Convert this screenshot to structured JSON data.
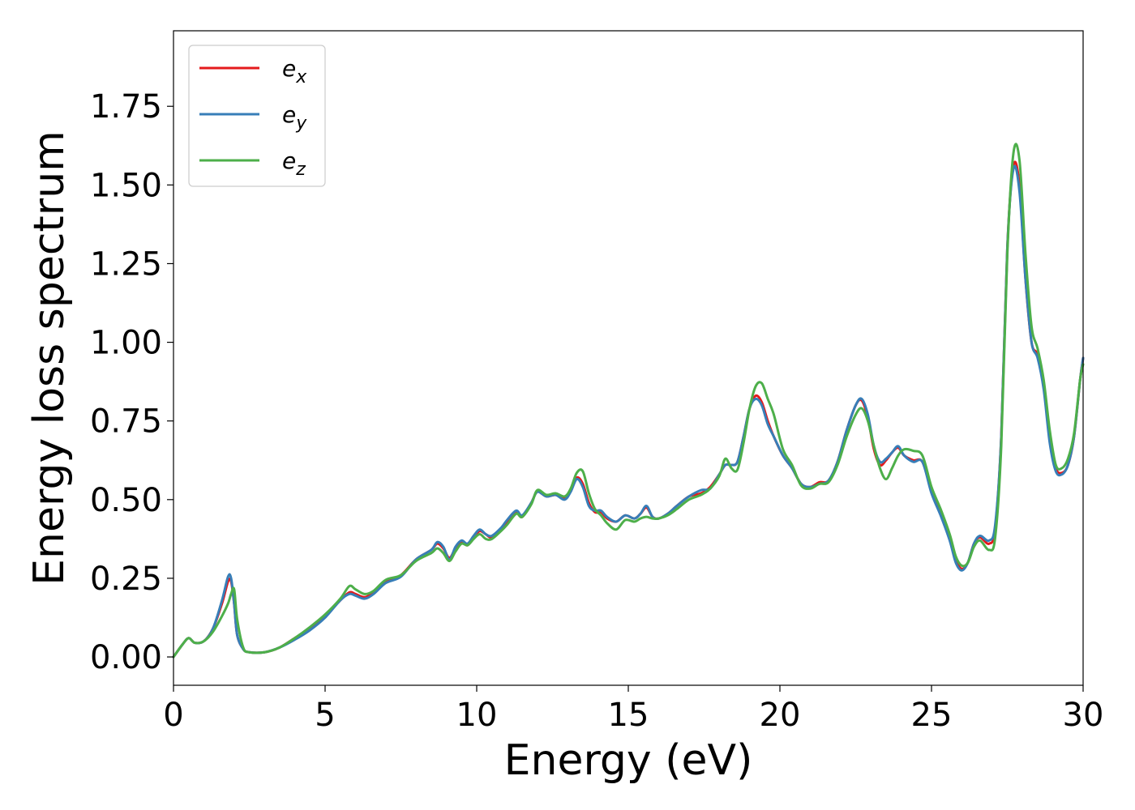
{
  "chart_data": {
    "type": "line",
    "title": "",
    "xlabel": "Energy (eV)",
    "ylabel": "Energy loss spectrum",
    "xlim": [
      0,
      30
    ],
    "ylim": [
      -0.09,
      1.99
    ],
    "xticks": [
      0,
      5,
      10,
      15,
      20,
      25,
      30
    ],
    "xtick_labels": [
      "0",
      "5",
      "10",
      "15",
      "20",
      "25",
      "30"
    ],
    "yticks": [
      0,
      0.25,
      0.5,
      0.75,
      1.0,
      1.25,
      1.5,
      1.75
    ],
    "ytick_labels": [
      "0.00",
      "0.25",
      "0.50",
      "0.75",
      "1.00",
      "1.25",
      "1.50",
      "1.75"
    ],
    "grid": false,
    "legend_position": "top-left",
    "series": [
      {
        "name": "e_x",
        "label_base": "e",
        "label_sub": "x",
        "color": "#e41a1c",
        "x": [
          0,
          0.3,
          0.5,
          0.7,
          1.0,
          1.3,
          1.6,
          1.8,
          1.9,
          2.0,
          2.1,
          2.3,
          2.5,
          3.0,
          3.5,
          4.0,
          4.5,
          5.0,
          5.5,
          5.8,
          6.0,
          6.3,
          6.6,
          7.0,
          7.5,
          8.0,
          8.5,
          8.7,
          8.9,
          9.1,
          9.3,
          9.5,
          9.7,
          9.9,
          10.1,
          10.3,
          10.5,
          10.8,
          11.0,
          11.3,
          11.5,
          11.8,
          12.0,
          12.3,
          12.6,
          12.9,
          13.1,
          13.3,
          13.5,
          13.7,
          13.9,
          14.1,
          14.3,
          14.6,
          14.9,
          15.2,
          15.4,
          15.6,
          15.8,
          16.0,
          16.3,
          16.6,
          17.0,
          17.4,
          17.7,
          18.0,
          18.2,
          18.4,
          18.6,
          18.8,
          19.0,
          19.2,
          19.4,
          19.6,
          19.8,
          20.1,
          20.4,
          20.7,
          21.0,
          21.3,
          21.6,
          21.9,
          22.2,
          22.5,
          22.7,
          22.9,
          23.1,
          23.3,
          23.5,
          23.7,
          23.9,
          24.1,
          24.4,
          24.7,
          25.0,
          25.3,
          25.6,
          25.8,
          26.0,
          26.2,
          26.4,
          26.6,
          26.9,
          27.1,
          27.3,
          27.5,
          27.7,
          27.9,
          28.1,
          28.3,
          28.5,
          28.7,
          28.9,
          29.1,
          29.3,
          29.5,
          29.7,
          29.9,
          30.0
        ],
        "y": [
          0,
          0.04,
          0.06,
          0.045,
          0.05,
          0.09,
          0.17,
          0.24,
          0.24,
          0.17,
          0.07,
          0.025,
          0.015,
          0.015,
          0.03,
          0.06,
          0.09,
          0.13,
          0.18,
          0.205,
          0.2,
          0.19,
          0.205,
          0.24,
          0.26,
          0.31,
          0.34,
          0.36,
          0.345,
          0.315,
          0.345,
          0.365,
          0.355,
          0.38,
          0.4,
          0.39,
          0.38,
          0.405,
          0.43,
          0.46,
          0.445,
          0.49,
          0.525,
          0.51,
          0.515,
          0.505,
          0.53,
          0.57,
          0.55,
          0.49,
          0.46,
          0.46,
          0.44,
          0.43,
          0.45,
          0.44,
          0.455,
          0.475,
          0.445,
          0.44,
          0.455,
          0.48,
          0.51,
          0.52,
          0.54,
          0.58,
          0.61,
          0.61,
          0.62,
          0.7,
          0.79,
          0.83,
          0.81,
          0.75,
          0.7,
          0.64,
          0.6,
          0.55,
          0.54,
          0.555,
          0.56,
          0.62,
          0.72,
          0.8,
          0.815,
          0.76,
          0.66,
          0.61,
          0.625,
          0.65,
          0.665,
          0.64,
          0.625,
          0.62,
          0.53,
          0.46,
          0.38,
          0.31,
          0.28,
          0.3,
          0.36,
          0.38,
          0.36,
          0.41,
          0.7,
          1.3,
          1.56,
          1.5,
          1.2,
          1.0,
          0.96,
          0.86,
          0.7,
          0.6,
          0.585,
          0.61,
          0.7,
          0.88,
          0.95
        ]
      },
      {
        "name": "e_y",
        "label_base": "e",
        "label_sub": "y",
        "color": "#377eb8",
        "x": [
          0,
          0.3,
          0.5,
          0.7,
          1.0,
          1.3,
          1.6,
          1.8,
          1.9,
          2.0,
          2.1,
          2.3,
          2.5,
          3.0,
          3.5,
          4.0,
          4.5,
          5.0,
          5.5,
          5.8,
          6.0,
          6.3,
          6.6,
          7.0,
          7.5,
          8.0,
          8.5,
          8.7,
          8.9,
          9.1,
          9.3,
          9.5,
          9.7,
          9.9,
          10.1,
          10.3,
          10.5,
          10.8,
          11.0,
          11.3,
          11.5,
          11.8,
          12.0,
          12.3,
          12.6,
          12.9,
          13.1,
          13.3,
          13.5,
          13.7,
          13.9,
          14.1,
          14.3,
          14.6,
          14.9,
          15.2,
          15.4,
          15.6,
          15.8,
          16.0,
          16.3,
          16.6,
          17.0,
          17.4,
          17.7,
          18.0,
          18.2,
          18.4,
          18.6,
          18.8,
          19.0,
          19.2,
          19.4,
          19.6,
          19.8,
          20.1,
          20.4,
          20.7,
          21.0,
          21.3,
          21.6,
          21.9,
          22.2,
          22.5,
          22.7,
          22.9,
          23.1,
          23.3,
          23.5,
          23.7,
          23.9,
          24.1,
          24.4,
          24.7,
          25.0,
          25.3,
          25.6,
          25.8,
          26.0,
          26.2,
          26.4,
          26.6,
          26.9,
          27.1,
          27.3,
          27.5,
          27.7,
          27.9,
          28.1,
          28.3,
          28.5,
          28.7,
          28.9,
          29.1,
          29.3,
          29.5,
          29.7,
          29.9,
          30.0
        ],
        "y": [
          0,
          0.04,
          0.06,
          0.045,
          0.05,
          0.09,
          0.18,
          0.255,
          0.25,
          0.17,
          0.07,
          0.025,
          0.015,
          0.015,
          0.03,
          0.055,
          0.085,
          0.125,
          0.18,
          0.2,
          0.195,
          0.185,
          0.2,
          0.235,
          0.255,
          0.31,
          0.34,
          0.365,
          0.35,
          0.31,
          0.35,
          0.37,
          0.36,
          0.385,
          0.405,
          0.39,
          0.385,
          0.41,
          0.435,
          0.465,
          0.45,
          0.49,
          0.525,
          0.51,
          0.515,
          0.5,
          0.525,
          0.565,
          0.54,
          0.48,
          0.465,
          0.465,
          0.445,
          0.43,
          0.45,
          0.44,
          0.455,
          0.48,
          0.445,
          0.44,
          0.455,
          0.48,
          0.51,
          0.53,
          0.535,
          0.58,
          0.61,
          0.61,
          0.62,
          0.7,
          0.79,
          0.82,
          0.8,
          0.74,
          0.7,
          0.64,
          0.6,
          0.55,
          0.54,
          0.55,
          0.56,
          0.62,
          0.72,
          0.8,
          0.82,
          0.77,
          0.67,
          0.62,
          0.63,
          0.65,
          0.67,
          0.64,
          0.62,
          0.62,
          0.52,
          0.45,
          0.37,
          0.3,
          0.275,
          0.3,
          0.36,
          0.385,
          0.37,
          0.42,
          0.7,
          1.3,
          1.55,
          1.48,
          1.2,
          1.0,
          0.95,
          0.85,
          0.68,
          0.59,
          0.58,
          0.61,
          0.7,
          0.88,
          0.95
        ]
      },
      {
        "name": "e_z",
        "label_base": "e",
        "label_sub": "z",
        "color": "#4daf4a",
        "x": [
          0,
          0.3,
          0.5,
          0.7,
          1.0,
          1.3,
          1.6,
          1.8,
          1.9,
          2.0,
          2.1,
          2.3,
          2.5,
          3.0,
          3.5,
          4.0,
          4.5,
          5.0,
          5.5,
          5.8,
          6.0,
          6.3,
          6.6,
          7.0,
          7.5,
          8.0,
          8.5,
          8.7,
          8.9,
          9.1,
          9.3,
          9.5,
          9.7,
          9.9,
          10.1,
          10.3,
          10.5,
          10.8,
          11.0,
          11.3,
          11.5,
          11.8,
          12.0,
          12.3,
          12.6,
          12.9,
          13.1,
          13.3,
          13.5,
          13.7,
          13.9,
          14.1,
          14.3,
          14.6,
          14.9,
          15.2,
          15.4,
          15.6,
          15.8,
          16.0,
          16.3,
          16.6,
          17.0,
          17.4,
          17.7,
          18.0,
          18.2,
          18.4,
          18.6,
          18.8,
          19.0,
          19.2,
          19.4,
          19.6,
          19.8,
          20.1,
          20.4,
          20.7,
          21.0,
          21.3,
          21.6,
          21.9,
          22.2,
          22.5,
          22.7,
          22.9,
          23.1,
          23.3,
          23.5,
          23.7,
          23.9,
          24.1,
          24.4,
          24.7,
          25.0,
          25.3,
          25.6,
          25.8,
          26.0,
          26.2,
          26.4,
          26.6,
          26.9,
          27.1,
          27.3,
          27.5,
          27.7,
          27.9,
          28.1,
          28.3,
          28.5,
          28.7,
          28.9,
          29.1,
          29.3,
          29.5,
          29.7,
          29.9,
          30.0
        ],
        "y": [
          0,
          0.04,
          0.06,
          0.045,
          0.05,
          0.08,
          0.13,
          0.17,
          0.2,
          0.215,
          0.12,
          0.03,
          0.015,
          0.015,
          0.03,
          0.06,
          0.095,
          0.135,
          0.185,
          0.225,
          0.215,
          0.2,
          0.21,
          0.245,
          0.26,
          0.305,
          0.33,
          0.345,
          0.33,
          0.305,
          0.335,
          0.36,
          0.355,
          0.375,
          0.39,
          0.375,
          0.375,
          0.4,
          0.42,
          0.455,
          0.445,
          0.485,
          0.53,
          0.515,
          0.52,
          0.51,
          0.535,
          0.585,
          0.59,
          0.52,
          0.47,
          0.45,
          0.425,
          0.405,
          0.435,
          0.43,
          0.44,
          0.445,
          0.44,
          0.44,
          0.45,
          0.47,
          0.5,
          0.515,
          0.535,
          0.575,
          0.63,
          0.6,
          0.595,
          0.68,
          0.79,
          0.86,
          0.87,
          0.82,
          0.77,
          0.66,
          0.61,
          0.545,
          0.535,
          0.55,
          0.555,
          0.61,
          0.7,
          0.77,
          0.79,
          0.75,
          0.67,
          0.6,
          0.565,
          0.6,
          0.64,
          0.66,
          0.655,
          0.64,
          0.54,
          0.47,
          0.39,
          0.32,
          0.29,
          0.3,
          0.35,
          0.37,
          0.34,
          0.38,
          0.67,
          1.28,
          1.6,
          1.58,
          1.28,
          1.05,
          0.98,
          0.88,
          0.72,
          0.61,
          0.6,
          0.63,
          0.71,
          0.88,
          0.93
        ]
      }
    ]
  }
}
